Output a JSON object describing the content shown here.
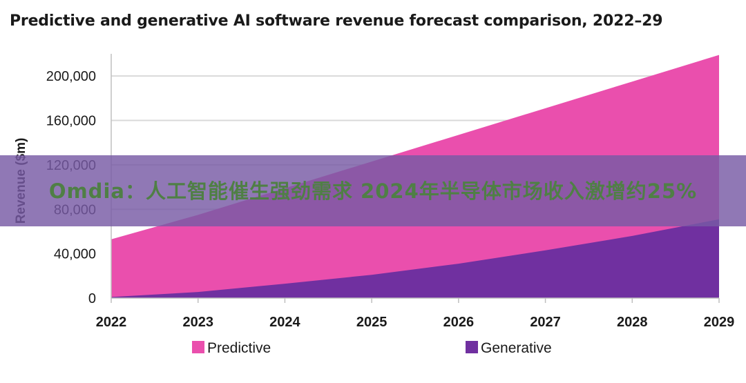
{
  "chart_data": {
    "type": "area",
    "title": "Predictive and generative AI software revenue forecast comparison, 2022–29",
    "xlabel": "",
    "ylabel": "Revenue ($m)",
    "categories": [
      "2022",
      "2023",
      "2024",
      "2025",
      "2026",
      "2027",
      "2028",
      "2029"
    ],
    "ylim": [
      0,
      220000
    ],
    "yticks": [
      0,
      40000,
      80000,
      120000,
      160000,
      200000
    ],
    "ytick_labels": [
      "0",
      "40,000",
      "80,000",
      "120,000",
      "160,000",
      "200,000"
    ],
    "stacked": false,
    "series": [
      {
        "name": "Predictive",
        "color": "#ea4fad",
        "values": [
          53000,
          75000,
          99000,
          123000,
          147000,
          171000,
          195000,
          219000
        ]
      },
      {
        "name": "Generative",
        "color": "#7030a0",
        "values": [
          1000,
          5500,
          13000,
          21000,
          31000,
          43000,
          56000,
          71000
        ]
      }
    ],
    "grid": "horizontal",
    "legend": "bottom"
  },
  "watermark": {
    "text": "Omdia：人工智能催生强劲需求 2024年半导体市场收入激增约25%"
  }
}
